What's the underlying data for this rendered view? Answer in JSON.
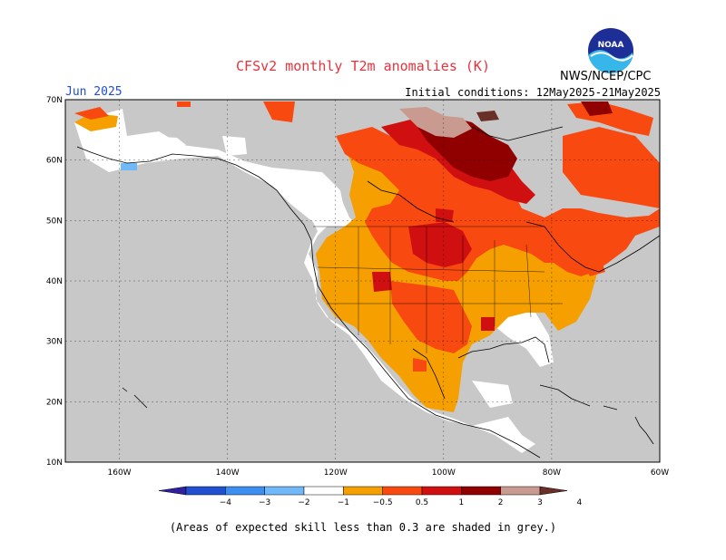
{
  "title": "CFSv2 monthly T2m anomalies (K)",
  "month": "Jun 2025",
  "initial_conditions": "Initial conditions: 12May2025-21May2025",
  "agency": "NWS/NCEP/CPC",
  "logo_text": "NOAA",
  "footnote": "(Areas of expected skill less than 0.3 are shaded in grey.)",
  "map": {
    "lon_range": [
      -170,
      -60
    ],
    "lat_range": [
      10,
      70
    ],
    "lon_labels": [
      "160W",
      "140W",
      "120W",
      "100W",
      "80W",
      "60W"
    ],
    "lat_labels": [
      "70N",
      "60N",
      "50N",
      "40N",
      "30N",
      "20N",
      "10N"
    ],
    "low_skill_color": "#c8c8c8",
    "land_fill_default": "#ffffff"
  },
  "colorbar": {
    "labels": [
      "−4",
      "−3",
      "−2",
      "−1",
      "−0.5",
      "0.5",
      "1",
      "2",
      "3",
      "4"
    ],
    "colors": [
      "#3020a0",
      "#2050d0",
      "#3c8ff0",
      "#70b8f8",
      "#ffffff",
      "#f5a000",
      "#f84a10",
      "#d01010",
      "#900000",
      "#c89a90",
      "#6a3028"
    ]
  },
  "anomaly_regions": [
    {
      "name": "alaska-north-slope",
      "category": "0.5-1"
    },
    {
      "name": "western-canada",
      "category": "0.5-1"
    },
    {
      "name": "central-us",
      "category": "1-2"
    },
    {
      "name": "northern-plains",
      "category": "2-3"
    },
    {
      "name": "hudson-bay",
      "category": "3-4"
    },
    {
      "name": "eastern-canada",
      "category": "1-2"
    },
    {
      "name": "northeast-us",
      "category": "1-2"
    },
    {
      "name": "southwest-us",
      "category": "0.5-1"
    },
    {
      "name": "mexico",
      "category": "0.5-1"
    },
    {
      "name": "texas",
      "category": "1-2"
    }
  ]
}
